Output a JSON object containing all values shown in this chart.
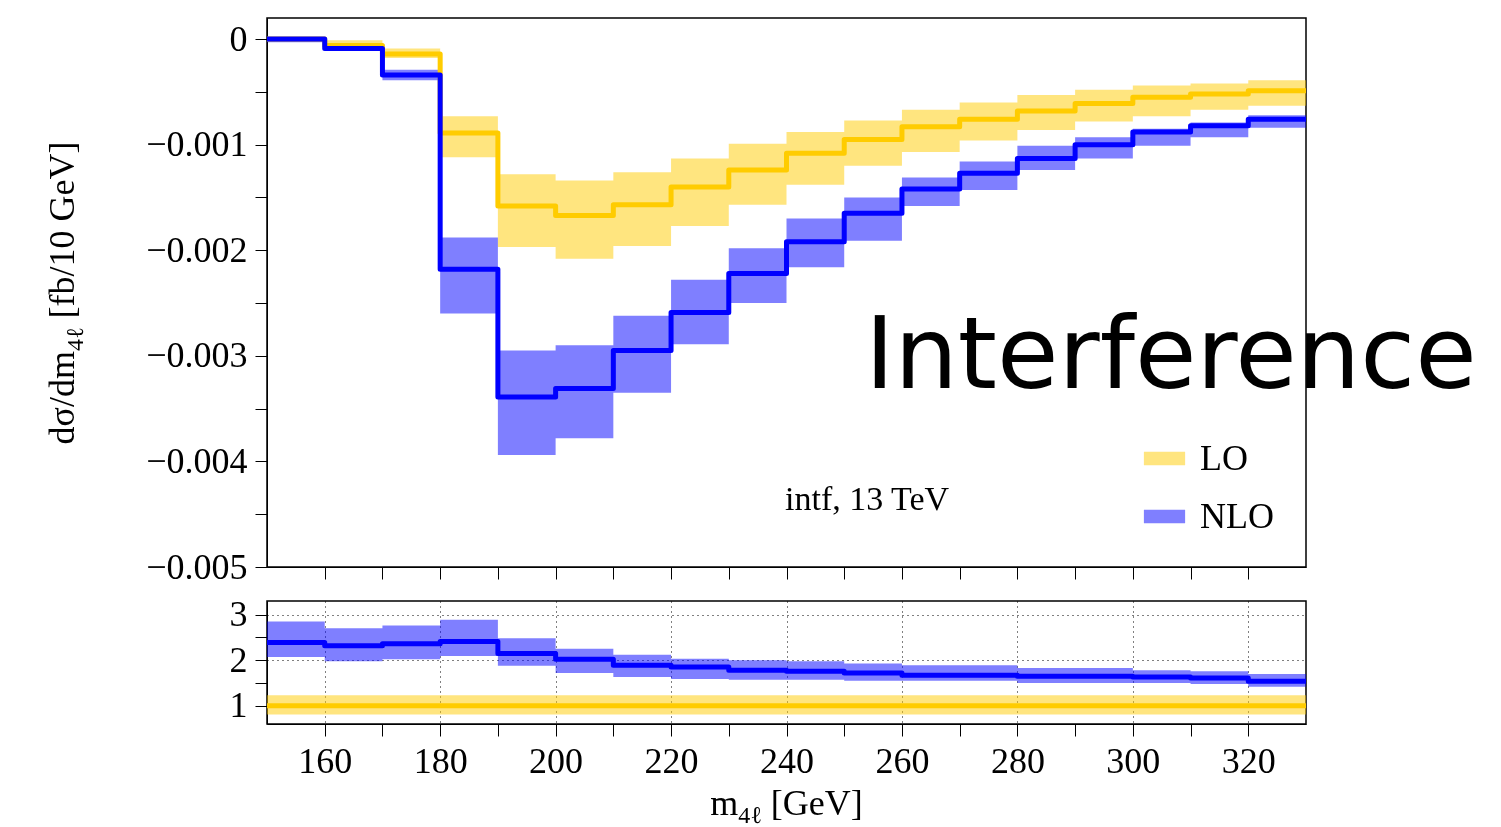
{
  "chart_data": [
    {
      "type": "step",
      "ylabel": "dσ/dm$_{4ℓ}$  [fb/10 GeV]",
      "annotations": [
        "intf, 13 TeV",
        "Interference"
      ],
      "legend": "bottom right",
      "tick_labels": "y",
      "xlim": [
        150,
        330
      ],
      "xticks": [
        160,
        {
          "value": 170,
          "label": null
        },
        180,
        {
          "value": 190,
          "label": null
        },
        200,
        {
          "value": 210,
          "label": null
        },
        220,
        {
          "value": 230,
          "label": null
        },
        240,
        {
          "value": 250,
          "label": null
        },
        260,
        {
          "value": 270,
          "label": null
        },
        280,
        {
          "value": 290,
          "label": null
        },
        300,
        {
          "value": 310,
          "label": null
        },
        320
      ],
      "ylim": [
        -0.005,
        0.0002
      ],
      "yticks": [
        0,
        {
          "value": -0.0005,
          "label": null
        },
        {
          "value": -0.001,
          "label": "−0.001"
        },
        {
          "value": -0.0015,
          "label": null
        },
        {
          "value": -0.002,
          "label": "−0.002"
        },
        {
          "value": -0.0025,
          "label": null
        },
        {
          "value": -0.003,
          "label": "−0.003"
        },
        {
          "value": -0.0035,
          "label": null
        },
        {
          "value": -0.004,
          "label": "−0.004"
        },
        {
          "value": -0.0045,
          "label": null
        },
        {
          "value": -0.005,
          "label": "−0.005"
        }
      ],
      "series": [
        {
          "name": "LO",
          "color": "#ffcc00",
          "x": [
            150,
            160,
            170,
            180,
            190,
            200,
            210,
            220,
            230,
            240,
            250,
            260,
            270,
            280,
            290,
            300,
            310,
            320,
            330
          ],
          "values": [
            0,
            -6e-05,
            -0.00014,
            -0.00089,
            -0.00158,
            -0.00167,
            -0.00157,
            -0.0014,
            -0.00124,
            -0.00108,
            -0.00095,
            -0.00083,
            -0.00076,
            -0.00068,
            -0.00061,
            -0.00055,
            -0.00052,
            -0.00049,
            -0.00049
          ],
          "upper": [
            2e-05,
            -1e-05,
            -9e-05,
            -0.00073,
            -0.00128,
            -0.00134,
            -0.00126,
            -0.00113,
            -0.00099,
            -0.00088,
            -0.00077,
            -0.00067,
            -0.0006,
            -0.00053,
            -0.00048,
            -0.00044,
            -0.00042,
            -0.00039,
            -0.00039
          ],
          "lower": [
            -2e-05,
            -9e-05,
            -0.00018,
            -0.00112,
            -0.00197,
            -0.00208,
            -0.00196,
            -0.00177,
            -0.00157,
            -0.00138,
            -0.0012,
            -0.00107,
            -0.00096,
            -0.00086,
            -0.00078,
            -0.00073,
            -0.00067,
            -0.00063,
            -0.00063
          ]
        },
        {
          "name": "NLO",
          "color": "#0000ff",
          "x": [
            150,
            160,
            170,
            180,
            190,
            200,
            210,
            220,
            230,
            240,
            250,
            260,
            270,
            280,
            290,
            300,
            310,
            320,
            330
          ],
          "values": [
            0,
            -9e-05,
            -0.00034,
            -0.00218,
            -0.00339,
            -0.00331,
            -0.00295,
            -0.00259,
            -0.00222,
            -0.00192,
            -0.00165,
            -0.00142,
            -0.00127,
            -0.00113,
            -0.001,
            -0.00088,
            -0.00082,
            -0.00076,
            -0.00076
          ],
          "upper": [
            0,
            -7e-05,
            -0.00029,
            -0.00188,
            -0.00295,
            -0.0029,
            -0.00262,
            -0.00228,
            -0.00198,
            -0.0017,
            -0.0015,
            -0.00131,
            -0.00116,
            -0.00101,
            -0.00093,
            -0.00085,
            -0.00079,
            -0.00072,
            -0.00072
          ],
          "lower": [
            -3e-05,
            -0.00011,
            -0.00039,
            -0.0026,
            -0.00394,
            -0.00378,
            -0.00335,
            -0.00289,
            -0.0025,
            -0.00216,
            -0.00191,
            -0.00158,
            -0.00143,
            -0.00124,
            -0.00113,
            -0.00101,
            -0.00093,
            -0.00084,
            -0.00084
          ]
        }
      ]
    },
    {
      "type": "step",
      "xlabel": "m$_{4ℓ}$ [GeV]",
      "grid": true,
      "xlim": [
        150,
        330
      ],
      "xticks": [
        160,
        {
          "value": 170,
          "label": null
        },
        180,
        {
          "value": 190,
          "label": null
        },
        200,
        {
          "value": 210,
          "label": null
        },
        220,
        {
          "value": 230,
          "label": null
        },
        240,
        {
          "value": 250,
          "label": null
        },
        260,
        {
          "value": 270,
          "label": null
        },
        280,
        {
          "value": 290,
          "label": null
        },
        300,
        {
          "value": 310,
          "label": null
        },
        320
      ],
      "ylim": [
        0.6,
        3.3
      ],
      "yticks": [
        1,
        {
          "value": 1.5,
          "label": null
        },
        2,
        {
          "value": 2.5,
          "label": null
        },
        3
      ],
      "series": [
        {
          "color": "#ffcc00",
          "x": [
            150,
            160,
            170,
            180,
            190,
            200,
            210,
            220,
            230,
            240,
            250,
            260,
            270,
            280,
            290,
            300,
            310,
            320,
            330
          ],
          "values": [
            1,
            1,
            1,
            1,
            1,
            1,
            1,
            1,
            1,
            1,
            1,
            1,
            1,
            1,
            1,
            1,
            1,
            1,
            1
          ],
          "upper": [
            1.23,
            1.23,
            1.23,
            1.23,
            1.23,
            1.23,
            1.23,
            1.23,
            1.23,
            1.23,
            1.23,
            1.23,
            1.23,
            1.23,
            1.23,
            1.23,
            1.23,
            1.23,
            1.23
          ],
          "lower": [
            0.81,
            0.81,
            0.81,
            0.81,
            0.81,
            0.81,
            0.81,
            0.81,
            0.81,
            0.81,
            0.81,
            0.81,
            0.81,
            0.81,
            0.81,
            0.81,
            0.81,
            0.81,
            0.81
          ]
        },
        {
          "color": "#0000ff",
          "x": [
            150,
            160,
            170,
            180,
            190,
            200,
            210,
            220,
            230,
            240,
            250,
            260,
            270,
            280,
            290,
            300,
            310,
            320,
            330
          ],
          "values": [
            2.39,
            2.32,
            2.36,
            2.41,
            2.15,
            2.02,
            1.89,
            1.85,
            1.78,
            1.76,
            1.72,
            1.67,
            1.67,
            1.65,
            1.65,
            1.63,
            1.61,
            1.54,
            1.54
          ],
          "upper": [
            2.85,
            2.7,
            2.76,
            2.89,
            2.48,
            2.25,
            2.12,
            2.03,
            2,
            1.98,
            1.93,
            1.89,
            1.89,
            1.83,
            1.83,
            1.78,
            1.76,
            1.7,
            1.7
          ],
          "lower": [
            2.07,
            1.98,
            2.02,
            2.09,
            1.88,
            1.72,
            1.63,
            1.59,
            1.57,
            1.57,
            1.55,
            1.55,
            1.55,
            1.5,
            1.5,
            1.5,
            1.48,
            1.42,
            1.42
          ]
        }
      ]
    }
  ]
}
